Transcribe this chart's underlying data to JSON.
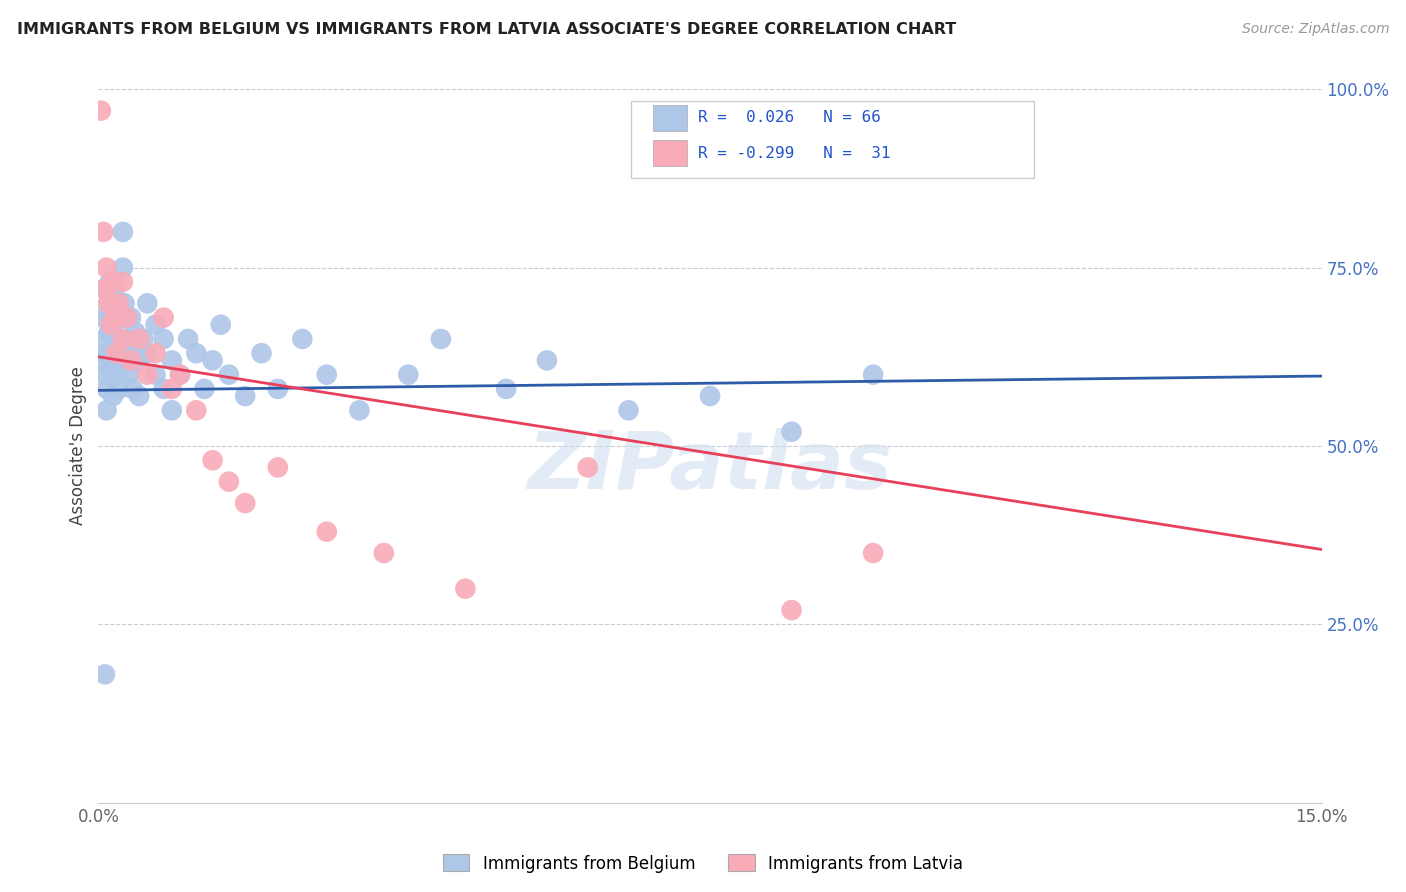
{
  "title": "IMMIGRANTS FROM BELGIUM VS IMMIGRANTS FROM LATVIA ASSOCIATE'S DEGREE CORRELATION CHART",
  "source": "Source: ZipAtlas.com",
  "ylabel": "Associate's Degree",
  "x_min": 0.0,
  "x_max": 0.15,
  "y_min": 0.0,
  "y_max": 1.0,
  "x_tick_positions": [
    0.0,
    0.03,
    0.06,
    0.09,
    0.12,
    0.15
  ],
  "x_tick_labels": [
    "0.0%",
    "",
    "",
    "",
    "",
    "15.0%"
  ],
  "y_ticks_right": [
    0.25,
    0.5,
    0.75,
    1.0
  ],
  "y_tick_labels_right": [
    "25.0%",
    "50.0%",
    "75.0%",
    "100.0%"
  ],
  "belgium_color": "#aec6e8",
  "latvia_color": "#f9abb8",
  "belgium_line_color": "#2e5ca8",
  "latvia_line_color": "#e8405a",
  "R_belgium": 0.026,
  "N_belgium": 66,
  "R_latvia": -0.299,
  "N_latvia": 31,
  "legend_label_belgium": "Immigrants from Belgium",
  "legend_label_latvia": "Immigrants from Latvia",
  "watermark": "ZIPatlas",
  "belgium_x": [
    0.0003,
    0.0005,
    0.0007,
    0.0008,
    0.0009,
    0.001,
    0.001,
    0.001,
    0.0012,
    0.0013,
    0.0014,
    0.0015,
    0.0016,
    0.0017,
    0.0018,
    0.002,
    0.002,
    0.002,
    0.0022,
    0.0023,
    0.0025,
    0.0027,
    0.003,
    0.003,
    0.003,
    0.0032,
    0.0035,
    0.0038,
    0.004,
    0.004,
    0.0042,
    0.0045,
    0.005,
    0.005,
    0.0055,
    0.006,
    0.006,
    0.007,
    0.007,
    0.008,
    0.008,
    0.009,
    0.009,
    0.01,
    0.011,
    0.012,
    0.013,
    0.014,
    0.015,
    0.016,
    0.018,
    0.02,
    0.022,
    0.025,
    0.028,
    0.032,
    0.038,
    0.042,
    0.05,
    0.055,
    0.065,
    0.075,
    0.085,
    0.095,
    0.003,
    0.0008
  ],
  "belgium_y": [
    0.62,
    0.68,
    0.72,
    0.65,
    0.6,
    0.58,
    0.63,
    0.55,
    0.7,
    0.66,
    0.73,
    0.68,
    0.63,
    0.6,
    0.57,
    0.72,
    0.67,
    0.62,
    0.65,
    0.6,
    0.58,
    0.64,
    0.75,
    0.68,
    0.62,
    0.7,
    0.65,
    0.6,
    0.68,
    0.63,
    0.58,
    0.66,
    0.62,
    0.57,
    0.65,
    0.7,
    0.63,
    0.67,
    0.6,
    0.65,
    0.58,
    0.62,
    0.55,
    0.6,
    0.65,
    0.63,
    0.58,
    0.62,
    0.67,
    0.6,
    0.57,
    0.63,
    0.58,
    0.65,
    0.6,
    0.55,
    0.6,
    0.65,
    0.58,
    0.62,
    0.55,
    0.57,
    0.52,
    0.6,
    0.8,
    0.18
  ],
  "latvia_x": [
    0.0003,
    0.0006,
    0.0008,
    0.001,
    0.0012,
    0.0015,
    0.0018,
    0.002,
    0.0022,
    0.0025,
    0.003,
    0.003,
    0.0035,
    0.004,
    0.005,
    0.006,
    0.007,
    0.008,
    0.009,
    0.01,
    0.012,
    0.014,
    0.016,
    0.018,
    0.022,
    0.028,
    0.035,
    0.045,
    0.06,
    0.085,
    0.095
  ],
  "latvia_y": [
    0.97,
    0.8,
    0.72,
    0.75,
    0.7,
    0.67,
    0.73,
    0.68,
    0.63,
    0.7,
    0.65,
    0.73,
    0.68,
    0.62,
    0.65,
    0.6,
    0.63,
    0.68,
    0.58,
    0.6,
    0.55,
    0.48,
    0.45,
    0.42,
    0.47,
    0.38,
    0.35,
    0.3,
    0.47,
    0.27,
    0.35
  ],
  "belgium_trend_x": [
    0.0,
    0.15
  ],
  "belgium_trend_y": [
    0.578,
    0.598
  ],
  "latvia_trend_x": [
    0.0,
    0.15
  ],
  "latvia_trend_y": [
    0.625,
    0.355
  ]
}
